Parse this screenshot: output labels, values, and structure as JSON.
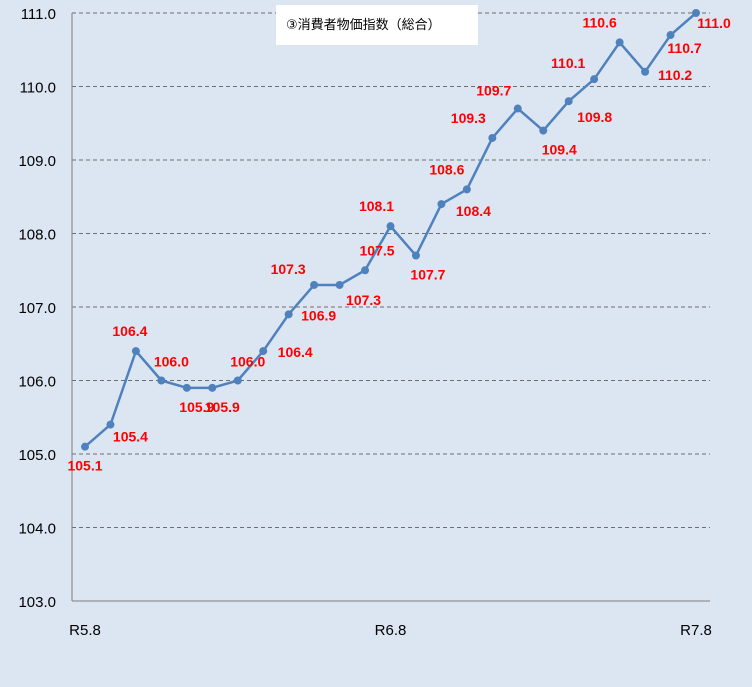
{
  "chart_data": {
    "type": "line",
    "title": "③消費者物価指数（総合）",
    "xlabel": "",
    "ylabel": "",
    "x_tick_labels": [
      {
        "index": 0,
        "label": "R5.8"
      },
      {
        "index": 12,
        "label": "R6.8"
      },
      {
        "index": 24,
        "label": "R7.8"
      }
    ],
    "y_ticks": [
      "103.0",
      "104.0",
      "105.0",
      "106.0",
      "107.0",
      "108.0",
      "109.0",
      "110.0",
      "111.0"
    ],
    "ylim": [
      103,
      111
    ],
    "grid": "horizontal dashed",
    "legend": "none",
    "series": [
      {
        "values": [
          105.1,
          105.4,
          106.4,
          106.0,
          105.9,
          105.9,
          106.0,
          106.4,
          106.9,
          107.3,
          107.3,
          107.5,
          108.1,
          107.7,
          108.4,
          108.6,
          109.3,
          109.7,
          109.4,
          109.8,
          110.1,
          110.6,
          110.2,
          110.7,
          111.0
        ],
        "data_labels": [
          "105.1",
          "105.4",
          "106.4",
          "106.0",
          "105.9",
          "105.9",
          "106.0",
          "106.4",
          "106.9",
          "107.3",
          "107.3",
          "107.5",
          "108.1",
          "107.7",
          "108.4",
          "108.6",
          "109.3",
          "109.7",
          "109.4",
          "109.8",
          "110.1",
          "110.6",
          "110.2",
          "110.7",
          "111.0"
        ],
        "color": "#4f81bd"
      }
    ],
    "colors": {
      "background": "#dce6f2",
      "line": "#4f81bd",
      "data_label": "#ff0000",
      "grid": "#6e6e6e",
      "axis": "#7f7f7f",
      "tick_text": "#000000"
    }
  }
}
